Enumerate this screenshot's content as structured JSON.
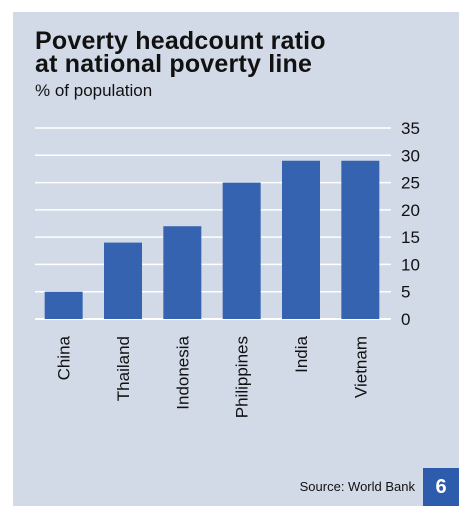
{
  "title": "Poverty headcount ratio\nat national poverty line",
  "subtitle": "% of population",
  "source": "Source: World Bank",
  "page_number": "6",
  "colors": {
    "background": "#d2dae8",
    "bar": "#3563b0",
    "gridline": "#ffffff",
    "badge": "#2c5cab"
  },
  "chart_data": {
    "type": "bar",
    "title": "Poverty headcount ratio at national poverty line",
    "subtitle": "% of population",
    "xlabel": "",
    "ylabel": "",
    "categories": [
      "China",
      "Thailand",
      "Indonesia",
      "Philippines",
      "India",
      "Vietnam"
    ],
    "values": [
      5,
      14,
      17,
      25,
      29,
      29
    ],
    "ylim": [
      0,
      35
    ],
    "yticks": [
      0,
      5,
      10,
      15,
      20,
      25,
      30,
      35
    ],
    "y_axis_position": "right",
    "grid": true
  }
}
